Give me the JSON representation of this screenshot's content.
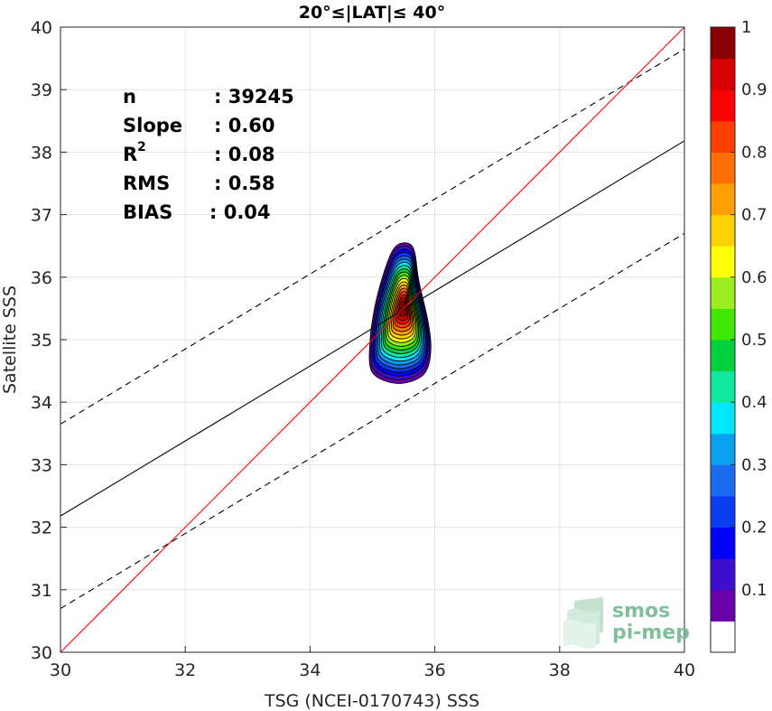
{
  "chart_data": {
    "type": "contour",
    "title": "20°≤|LAT|≤ 40°",
    "xlabel": "TSG (NCEI-0170743) SSS",
    "ylabel": "Satellite SSS",
    "xlim": [
      30,
      40
    ],
    "ylim": [
      30,
      40
    ],
    "xticks": [
      "30",
      "32",
      "34",
      "36",
      "38",
      "40"
    ],
    "yticks": [
      "30",
      "31",
      "32",
      "33",
      "34",
      "35",
      "36",
      "37",
      "38",
      "39",
      "40"
    ],
    "grid": true,
    "stats": [
      {
        "label": "n",
        "value": ": 39245"
      },
      {
        "label": "Slope",
        "value": ": 0.60"
      },
      {
        "label": "R",
        "sup": "2",
        "value": ": 0.08"
      },
      {
        "label": "RMS",
        "value": ": 0.58"
      },
      {
        "label": "BIAS",
        "value": ": 0.04"
      }
    ],
    "lines": {
      "identity": {
        "slope": 1.0,
        "intercept": 0.0,
        "color": "#ff0000"
      },
      "fit": {
        "slope": 0.6,
        "intercept": 14.18,
        "color": "#000000"
      },
      "upper_bound": {
        "slope": 0.6,
        "intercept": 15.65,
        "dashed": true
      },
      "lower_bound": {
        "slope": 0.6,
        "intercept": 12.7,
        "dashed": true
      }
    },
    "density_peak": {
      "x": 35.5,
      "y": 35.5
    },
    "colorbar": {
      "ticks": [
        "0.1",
        "0.2",
        "0.3",
        "0.4",
        "0.5",
        "0.6",
        "0.7",
        "0.8",
        "0.9",
        "1"
      ],
      "levels": [
        "#ffffff",
        "#6a00a8",
        "#3c0fcf",
        "#0000ff",
        "#0a3cf0",
        "#1a6cf0",
        "#0aa0f0",
        "#00e6ff",
        "#10e8a0",
        "#00d040",
        "#40e800",
        "#9aee20",
        "#ffff00",
        "#ffd200",
        "#ffa000",
        "#ff7000",
        "#ff4000",
        "#ff0000",
        "#d80000",
        "#8a0000"
      ]
    }
  },
  "watermark": {
    "line1": "smos",
    "line2": "pi-mep"
  }
}
